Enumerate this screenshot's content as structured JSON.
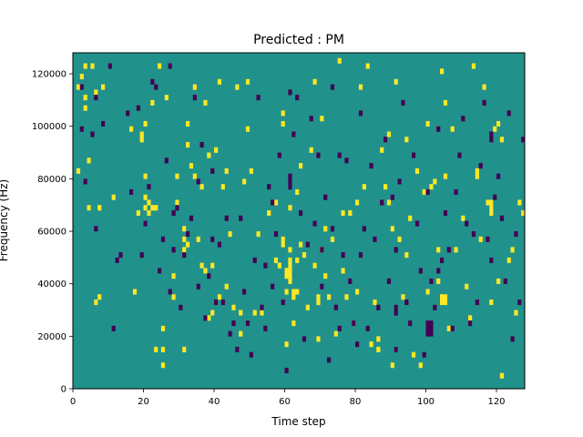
{
  "chart_data": {
    "type": "heatmap",
    "title": "Predicted : PM",
    "xlabel": "Time step",
    "ylabel": "Frequency (Hz)",
    "xlim": [
      0,
      128
    ],
    "ylim": [
      0,
      128000
    ],
    "x_ticks": [
      0,
      20,
      40,
      60,
      80,
      100,
      120
    ],
    "x_tick_labels": [
      "0",
      "20",
      "40",
      "60",
      "80",
      "100",
      "120"
    ],
    "y_ticks": [
      0,
      20000,
      40000,
      60000,
      80000,
      100000,
      120000
    ],
    "y_tick_labels": [
      "0",
      "20000",
      "40000",
      "60000",
      "80000",
      "100000",
      "120000"
    ],
    "time_steps": 128,
    "frequency_bins": 64,
    "bin_height_hz": 2000,
    "value_range": [
      -1,
      1
    ],
    "colormap": "viridis",
    "colors": {
      "low": "#440154",
      "mid": "#21918c",
      "high": "#fde725"
    },
    "grid": false,
    "legend": "none",
    "background_value": 0,
    "cells_high": [
      [
        1,
        57
      ],
      [
        1,
        41
      ],
      [
        2,
        59
      ],
      [
        3,
        61
      ],
      [
        3,
        55
      ],
      [
        3,
        53
      ],
      [
        4,
        43
      ],
      [
        4,
        34
      ],
      [
        5,
        61
      ],
      [
        6,
        56
      ],
      [
        6,
        16
      ],
      [
        7,
        34
      ],
      [
        7,
        17
      ],
      [
        8,
        57
      ],
      [
        11,
        36
      ],
      [
        16,
        49
      ],
      [
        17,
        18
      ],
      [
        18,
        33
      ],
      [
        19,
        47
      ],
      [
        19,
        48
      ],
      [
        20,
        34
      ],
      [
        20,
        36
      ],
      [
        20,
        40
      ],
      [
        20,
        50
      ],
      [
        21,
        33
      ],
      [
        21,
        35
      ],
      [
        22,
        54
      ],
      [
        23,
        7
      ],
      [
        24,
        61
      ],
      [
        25,
        11
      ],
      [
        25,
        7
      ],
      [
        25,
        4
      ],
      [
        26,
        55
      ],
      [
        28,
        21
      ],
      [
        28,
        17
      ],
      [
        29,
        40
      ],
      [
        29,
        35
      ],
      [
        31,
        26
      ],
      [
        31,
        30
      ],
      [
        31,
        7
      ],
      [
        32,
        27
      ],
      [
        32,
        50
      ],
      [
        32,
        46
      ],
      [
        33,
        42
      ],
      [
        34,
        57
      ],
      [
        34,
        40
      ],
      [
        35,
        28
      ],
      [
        36,
        23
      ],
      [
        36,
        38
      ],
      [
        37,
        54
      ],
      [
        37,
        22
      ],
      [
        38,
        44
      ],
      [
        38,
        13
      ],
      [
        39,
        23
      ],
      [
        39,
        14
      ],
      [
        40,
        45
      ],
      [
        41,
        58
      ],
      [
        41,
        17
      ],
      [
        42,
        38
      ],
      [
        43,
        19
      ],
      [
        43,
        41
      ],
      [
        44,
        29
      ],
      [
        45,
        15
      ],
      [
        46,
        57
      ],
      [
        47,
        14
      ],
      [
        47,
        10
      ],
      [
        48,
        39
      ],
      [
        49,
        58
      ],
      [
        49,
        49
      ],
      [
        50,
        41
      ],
      [
        51,
        14
      ],
      [
        52,
        29
      ],
      [
        53,
        14
      ],
      [
        55,
        33
      ],
      [
        57,
        24
      ],
      [
        57,
        35
      ],
      [
        58,
        23
      ],
      [
        59,
        52
      ],
      [
        59,
        50
      ],
      [
        60,
        22
      ],
      [
        60,
        18
      ],
      [
        60,
        8
      ],
      [
        61,
        34
      ],
      [
        61,
        26
      ],
      [
        62,
        12
      ],
      [
        62,
        17
      ],
      [
        63,
        24
      ],
      [
        64,
        42
      ],
      [
        64,
        27
      ],
      [
        65,
        25
      ],
      [
        66,
        15
      ],
      [
        67,
        45
      ],
      [
        68,
        23
      ],
      [
        68,
        58
      ],
      [
        69,
        17
      ],
      [
        69,
        16
      ],
      [
        69,
        9
      ],
      [
        70,
        26
      ],
      [
        70,
        51
      ],
      [
        71,
        21
      ],
      [
        71,
        30
      ],
      [
        72,
        17
      ],
      [
        73,
        28
      ],
      [
        74,
        10
      ],
      [
        75,
        62
      ],
      [
        76,
        33
      ],
      [
        76,
        22
      ],
      [
        77,
        17
      ],
      [
        78,
        33
      ],
      [
        79,
        12
      ],
      [
        80,
        35
      ],
      [
        80,
        18
      ],
      [
        81,
        57
      ],
      [
        82,
        38
      ],
      [
        83,
        61
      ],
      [
        84,
        8
      ],
      [
        85,
        16
      ],
      [
        86,
        9
      ],
      [
        86,
        7
      ],
      [
        87,
        45
      ],
      [
        88,
        38
      ],
      [
        89,
        48
      ],
      [
        89,
        35
      ],
      [
        90,
        4
      ],
      [
        91,
        58
      ],
      [
        91,
        7
      ],
      [
        92,
        28
      ],
      [
        93,
        17
      ],
      [
        94,
        47
      ],
      [
        94,
        25
      ],
      [
        95,
        32
      ],
      [
        96,
        6
      ],
      [
        97,
        41
      ],
      [
        98,
        4
      ],
      [
        99,
        37
      ],
      [
        100,
        50
      ],
      [
        100,
        18
      ],
      [
        101,
        38
      ],
      [
        102,
        39
      ],
      [
        103,
        20
      ],
      [
        103,
        26
      ],
      [
        104,
        60
      ],
      [
        105,
        54
      ],
      [
        105,
        40
      ],
      [
        106,
        11
      ],
      [
        107,
        49
      ],
      [
        108,
        26
      ],
      [
        110,
        32
      ],
      [
        111,
        19
      ],
      [
        112,
        13
      ],
      [
        113,
        61
      ],
      [
        115,
        28
      ],
      [
        116,
        57
      ],
      [
        117,
        35
      ],
      [
        118,
        16
      ],
      [
        119,
        49
      ],
      [
        120,
        20
      ],
      [
        120,
        50
      ],
      [
        121,
        47
      ],
      [
        121,
        2
      ],
      [
        123,
        24
      ],
      [
        124,
        26
      ],
      [
        125,
        14
      ],
      [
        126,
        35
      ],
      [
        127,
        33
      ]
    ],
    "cells_low": [
      [
        2,
        57
      ],
      [
        2,
        49
      ],
      [
        3,
        39
      ],
      [
        5,
        48
      ],
      [
        6,
        55
      ],
      [
        6,
        30
      ],
      [
        8,
        50
      ],
      [
        10,
        61
      ],
      [
        11,
        11
      ],
      [
        12,
        24
      ],
      [
        13,
        25
      ],
      [
        15,
        52
      ],
      [
        16,
        37
      ],
      [
        18,
        53
      ],
      [
        19,
        25
      ],
      [
        20,
        31
      ],
      [
        21,
        38
      ],
      [
        22,
        58
      ],
      [
        23,
        57
      ],
      [
        24,
        22
      ],
      [
        25,
        28
      ],
      [
        26,
        43
      ],
      [
        27,
        18
      ],
      [
        27,
        61
      ],
      [
        28,
        33
      ],
      [
        28,
        26
      ],
      [
        29,
        34
      ],
      [
        30,
        15
      ],
      [
        31,
        25
      ],
      [
        32,
        29
      ],
      [
        33,
        32
      ],
      [
        34,
        55
      ],
      [
        35,
        39
      ],
      [
        35,
        19
      ],
      [
        36,
        46
      ],
      [
        37,
        13
      ],
      [
        38,
        21
      ],
      [
        39,
        28
      ],
      [
        39,
        41
      ],
      [
        40,
        16
      ],
      [
        41,
        27
      ],
      [
        42,
        16
      ],
      [
        43,
        32
      ],
      [
        44,
        10
      ],
      [
        45,
        12
      ],
      [
        46,
        7
      ],
      [
        47,
        32
      ],
      [
        48,
        18
      ],
      [
        49,
        12
      ],
      [
        50,
        6
      ],
      [
        51,
        24
      ],
      [
        52,
        55
      ],
      [
        53,
        15
      ],
      [
        54,
        11
      ],
      [
        54,
        23
      ],
      [
        55,
        38
      ],
      [
        56,
        35
      ],
      [
        56,
        19
      ],
      [
        57,
        29
      ],
      [
        58,
        44
      ],
      [
        59,
        16
      ],
      [
        60,
        3
      ],
      [
        61,
        56
      ],
      [
        62,
        48
      ],
      [
        63,
        55
      ],
      [
        64,
        33
      ],
      [
        65,
        9
      ],
      [
        66,
        27
      ],
      [
        67,
        51
      ],
      [
        68,
        31
      ],
      [
        69,
        44
      ],
      [
        70,
        19
      ],
      [
        71,
        36
      ],
      [
        72,
        5
      ],
      [
        73,
        30
      ],
      [
        73,
        57
      ],
      [
        74,
        15
      ],
      [
        75,
        11
      ],
      [
        75,
        44
      ],
      [
        76,
        25
      ],
      [
        77,
        43
      ],
      [
        78,
        20
      ],
      [
        79,
        12
      ],
      [
        80,
        8
      ],
      [
        81,
        52
      ],
      [
        82,
        30
      ],
      [
        83,
        11
      ],
      [
        84,
        42
      ],
      [
        85,
        28
      ],
      [
        86,
        15
      ],
      [
        87,
        35
      ],
      [
        88,
        47
      ],
      [
        89,
        20
      ],
      [
        90,
        36
      ],
      [
        91,
        26
      ],
      [
        91,
        7
      ],
      [
        92,
        39
      ],
      [
        93,
        54
      ],
      [
        94,
        16
      ],
      [
        95,
        12
      ],
      [
        96,
        44
      ],
      [
        97,
        31
      ],
      [
        98,
        22
      ],
      [
        99,
        6
      ],
      [
        100,
        37
      ],
      [
        101,
        20
      ],
      [
        102,
        15
      ],
      [
        103,
        49
      ],
      [
        104,
        24
      ],
      [
        105,
        33
      ],
      [
        106,
        26
      ],
      [
        107,
        11
      ],
      [
        108,
        37
      ],
      [
        109,
        44
      ],
      [
        110,
        51
      ],
      [
        111,
        31
      ],
      [
        112,
        12
      ],
      [
        113,
        29
      ],
      [
        114,
        16
      ],
      [
        115,
        42
      ],
      [
        116,
        54
      ],
      [
        117,
        28
      ],
      [
        118,
        24
      ],
      [
        119,
        36
      ],
      [
        120,
        40
      ],
      [
        121,
        32
      ],
      [
        122,
        20
      ],
      [
        123,
        52
      ],
      [
        124,
        9
      ],
      [
        125,
        29
      ],
      [
        126,
        16
      ],
      [
        127,
        47
      ]
    ],
    "cell_runs_high": [
      [
        60,
        1,
        21,
        2
      ],
      [
        61,
        1,
        20,
        5
      ],
      [
        62,
        2,
        18,
        1
      ],
      [
        31,
        1,
        28,
        1
      ],
      [
        22,
        2,
        34,
        1
      ],
      [
        90,
        1,
        30,
        1
      ],
      [
        104,
        2,
        16,
        2
      ],
      [
        118,
        1,
        33,
        3
      ],
      [
        114,
        1,
        40,
        2
      ],
      [
        63,
        1,
        37,
        1
      ],
      [
        59,
        1,
        27,
        2
      ]
    ],
    "cell_runs_low": [
      [
        100,
        2,
        10,
        3
      ],
      [
        103,
        1,
        22,
        1
      ],
      [
        81,
        1,
        25,
        1
      ],
      [
        118,
        1,
        47,
        2
      ],
      [
        70,
        1,
        26,
        1
      ],
      [
        61,
        1,
        38,
        3
      ],
      [
        91,
        1,
        14,
        2
      ]
    ]
  }
}
